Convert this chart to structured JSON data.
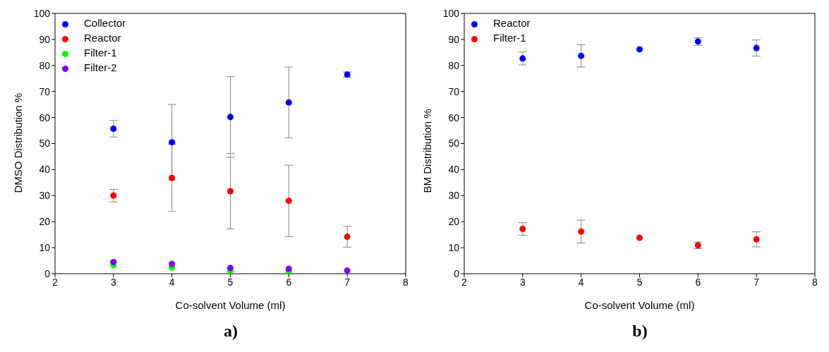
{
  "chart_data": [
    {
      "type": "scatter",
      "xlabel": "Co-solvent Volume (ml)",
      "ylabel": "DMSO Distribution %",
      "x": [
        3,
        4,
        5,
        6,
        7
      ],
      "xlim": [
        2,
        8
      ],
      "xticks": [
        2,
        3,
        4,
        5,
        6,
        7,
        8
      ],
      "ylim": [
        0,
        100
      ],
      "yticks": [
        0,
        10,
        20,
        30,
        40,
        50,
        60,
        70,
        80,
        90,
        100
      ],
      "grid": false,
      "legend": "top left",
      "marker": "circle",
      "annotations": [
        "a)"
      ],
      "series": [
        {
          "name": "Collector",
          "color": "#0000ff",
          "values": [
            55.7,
            50.5,
            60.2,
            65.8,
            76.5
          ],
          "errors": [
            3.2,
            14.5,
            15.5,
            13.6,
            1
          ]
        },
        {
          "name": "Reactor",
          "color": "#ff0000",
          "values": [
            30,
            36.8,
            31.7,
            28,
            14.2
          ],
          "errors": [
            2.4,
            12.9,
            14.5,
            13.7,
            4
          ]
        },
        {
          "name": "Filter-1",
          "color": "#00ff00",
          "values": [
            3.3,
            2.4,
            1.2,
            0.8,
            null
          ]
        },
        {
          "name": "Filter-2",
          "color": "#8000ff",
          "values": [
            4.5,
            3.8,
            2.2,
            1.9,
            1.2
          ]
        }
      ]
    },
    {
      "type": "scatter",
      "xlabel": "Co-solvent Volume (ml)",
      "ylabel": "BM Distribution %",
      "x": [
        3,
        4,
        5,
        6,
        7
      ],
      "xlim": [
        2,
        8
      ],
      "xticks": [
        2,
        3,
        4,
        5,
        6,
        7,
        8
      ],
      "ylim": [
        0,
        100
      ],
      "yticks": [
        0,
        10,
        20,
        30,
        40,
        50,
        60,
        70,
        80,
        90,
        100
      ],
      "grid": false,
      "legend": "top left",
      "marker": "circle",
      "annotations": [
        "b)"
      ],
      "series": [
        {
          "name": "Reactor",
          "color": "#0000ff",
          "values": [
            82.7,
            83.7,
            86.2,
            89.2,
            86.7
          ],
          "errors": [
            2.5,
            4.3,
            null,
            1.5,
            3.1
          ]
        },
        {
          "name": "Filter-1",
          "color": "#ff0000",
          "values": [
            17.2,
            16.2,
            13.8,
            10.9,
            13.2
          ],
          "errors": [
            2.4,
            4.4,
            null,
            1.3,
            2.9
          ]
        }
      ]
    }
  ]
}
